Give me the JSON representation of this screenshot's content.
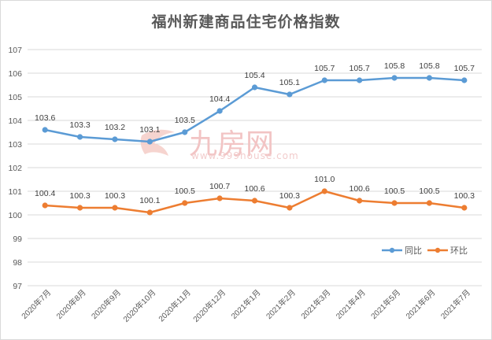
{
  "chart_data": {
    "type": "line",
    "title": "福州新建商品住宅价格指数",
    "xlabel": "",
    "ylabel": "",
    "ylim": [
      97,
      107
    ],
    "yticks": [
      97,
      98,
      99,
      100,
      101,
      102,
      103,
      104,
      105,
      106,
      107
    ],
    "grid": true,
    "legend_position": "bottom-right inside",
    "categories": [
      "2020年7月",
      "2020年8月",
      "2020年9月",
      "2020年10月",
      "2020年11月",
      "2020年12月",
      "2021年1月",
      "2021年2月",
      "2021年3月",
      "2021年4月",
      "2021年5月",
      "2021年6月",
      "2021年7月"
    ],
    "series": [
      {
        "name": "同比",
        "color": "#5b9bd5",
        "values": [
          103.6,
          103.3,
          103.2,
          103.1,
          103.5,
          104.4,
          105.4,
          105.1,
          105.7,
          105.7,
          105.8,
          105.8,
          105.7
        ],
        "labels": [
          "103.6",
          "103.3",
          "103.2",
          "103.1",
          "103.5",
          "104.4",
          "105.4",
          "105.1",
          "105.7",
          "105.7",
          "105.8",
          "105.8",
          "105.7"
        ]
      },
      {
        "name": "环比",
        "color": "#ed7d31",
        "values": [
          100.4,
          100.3,
          100.3,
          100.1,
          100.5,
          100.7,
          100.6,
          100.3,
          101.0,
          100.6,
          100.5,
          100.5,
          100.3
        ],
        "labels": [
          "100.4",
          "100.3",
          "100.3",
          "100.1",
          "100.5",
          "100.7",
          "100.6",
          "100.3",
          "101.0",
          "100.6",
          "100.5",
          "100.5",
          "100.3"
        ]
      }
    ]
  },
  "watermark": {
    "main": "九房网",
    "sub": "www.999house.com"
  }
}
